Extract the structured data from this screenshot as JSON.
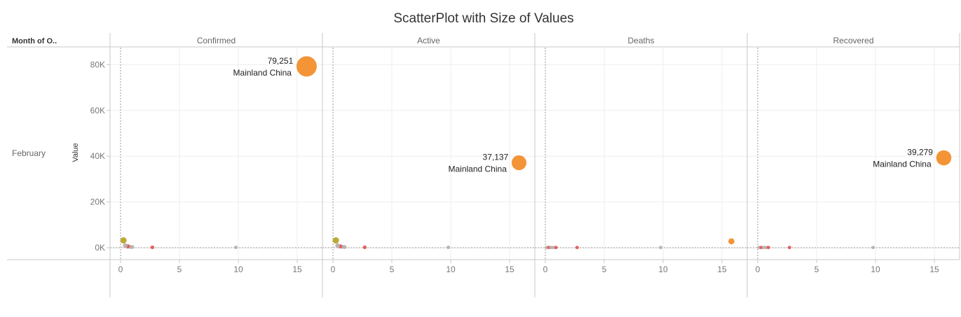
{
  "chart_data": {
    "type": "scatter",
    "title": "ScatterPlot with Size of Values",
    "row_header_title": "Month of O..",
    "row_value": "February",
    "ylabel": "Value",
    "xlabel": "",
    "ylim": [
      0,
      90000
    ],
    "xlim": [
      -1,
      17
    ],
    "y_ticks": [
      0,
      20000,
      40000,
      60000,
      80000
    ],
    "y_tick_labels": [
      "0K",
      "20K",
      "40K",
      "60K",
      "80K"
    ],
    "x_ticks": [
      0,
      5,
      10,
      15
    ],
    "x_tick_labels": [
      "0",
      "5",
      "10",
      "15"
    ],
    "panels": [
      {
        "name": "Confirmed",
        "points": [
          {
            "x": 15.8,
            "y": 79251,
            "value_label": "79,251",
            "name_label": "Mainland China",
            "color": "#f28e2b"
          },
          {
            "x": 0.25,
            "y": 3200,
            "color": "#b8a52e"
          },
          {
            "x": 0.4,
            "y": 900,
            "color": "#bab0ac"
          },
          {
            "x": 0.6,
            "y": 600,
            "color": "#e15759"
          },
          {
            "x": 0.8,
            "y": 400,
            "color": "#bab0ac"
          },
          {
            "x": 1.0,
            "y": 300,
            "color": "#bab0ac"
          },
          {
            "x": 2.7,
            "y": 200,
            "color": "#e15759"
          },
          {
            "x": 9.8,
            "y": 150,
            "color": "#bab0ac"
          }
        ]
      },
      {
        "name": "Active",
        "points": [
          {
            "x": 15.8,
            "y": 37137,
            "value_label": "37,137",
            "name_label": "Mainland China",
            "color": "#f28e2b"
          },
          {
            "x": 0.25,
            "y": 3200,
            "color": "#b8a52e"
          },
          {
            "x": 0.4,
            "y": 900,
            "color": "#bab0ac"
          },
          {
            "x": 0.6,
            "y": 600,
            "color": "#e15759"
          },
          {
            "x": 0.8,
            "y": 400,
            "color": "#bab0ac"
          },
          {
            "x": 1.0,
            "y": 300,
            "color": "#bab0ac"
          },
          {
            "x": 2.7,
            "y": 200,
            "color": "#e15759"
          },
          {
            "x": 9.8,
            "y": 150,
            "color": "#bab0ac"
          }
        ]
      },
      {
        "name": "Deaths",
        "points": [
          {
            "x": 15.8,
            "y": 2800,
            "color": "#f28e2b"
          },
          {
            "x": 0.1,
            "y": 100,
            "color": "#bab0ac"
          },
          {
            "x": 0.3,
            "y": 100,
            "color": "#e15759"
          },
          {
            "x": 0.5,
            "y": 100,
            "color": "#bab0ac"
          },
          {
            "x": 0.7,
            "y": 100,
            "color": "#bab0ac"
          },
          {
            "x": 0.9,
            "y": 100,
            "color": "#e15759"
          },
          {
            "x": 2.7,
            "y": 100,
            "color": "#e15759"
          },
          {
            "x": 9.8,
            "y": 100,
            "color": "#bab0ac"
          }
        ]
      },
      {
        "name": "Recovered",
        "points": [
          {
            "x": 15.8,
            "y": 39279,
            "value_label": "39,279",
            "name_label": "Mainland China",
            "color": "#f28e2b"
          },
          {
            "x": 0.1,
            "y": 100,
            "color": "#bab0ac"
          },
          {
            "x": 0.3,
            "y": 100,
            "color": "#e15759"
          },
          {
            "x": 0.5,
            "y": 100,
            "color": "#bab0ac"
          },
          {
            "x": 0.7,
            "y": 100,
            "color": "#bab0ac"
          },
          {
            "x": 0.9,
            "y": 100,
            "color": "#e15759"
          },
          {
            "x": 2.7,
            "y": 100,
            "color": "#e15759"
          },
          {
            "x": 9.8,
            "y": 100,
            "color": "#bab0ac"
          }
        ]
      }
    ],
    "colors": {
      "accent": "#f28e2b",
      "grid": "#eeeeee",
      "axis": "#c8c8c8",
      "reference": "#999999"
    }
  }
}
